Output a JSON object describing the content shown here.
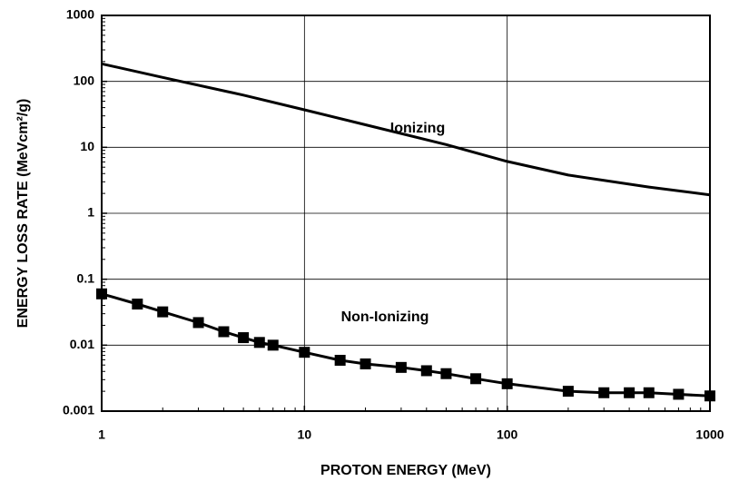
{
  "chart_data": {
    "type": "line",
    "x_label": "PROTON ENERGY (MeV)",
    "y_label": "ENERGY LOSS RATE (MeVcm²/g)",
    "xscale": "log",
    "yscale": "log",
    "xlim": [
      1,
      1000
    ],
    "ylim": [
      0.001,
      1000
    ],
    "xticks": [
      1,
      10,
      100,
      1000
    ],
    "yticks": [
      0.001,
      0.01,
      0.1,
      1,
      10,
      100,
      1000
    ],
    "grid": true,
    "series": [
      {
        "name": "Ionizing",
        "color": "#000000",
        "marker": "none",
        "x": [
          1,
          2,
          5,
          10,
          20,
          50,
          100,
          200,
          500,
          1000
        ],
        "values": [
          185,
          115,
          62,
          37,
          22,
          11,
          6.1,
          3.8,
          2.5,
          1.9
        ]
      },
      {
        "name": "Non-Ionizing",
        "color": "#000000",
        "marker": "square",
        "x": [
          1,
          1.5,
          2,
          3,
          4,
          5,
          6,
          7,
          10,
          15,
          20,
          30,
          40,
          50,
          70,
          100,
          200,
          300,
          400,
          500,
          700,
          1000
        ],
        "values": [
          0.06,
          0.042,
          0.032,
          0.022,
          0.016,
          0.013,
          0.011,
          0.01,
          0.0078,
          0.0059,
          0.0052,
          0.0046,
          0.0041,
          0.0037,
          0.0031,
          0.0026,
          0.002,
          0.0019,
          0.0019,
          0.0019,
          0.0018,
          0.0017
        ]
      }
    ]
  }
}
